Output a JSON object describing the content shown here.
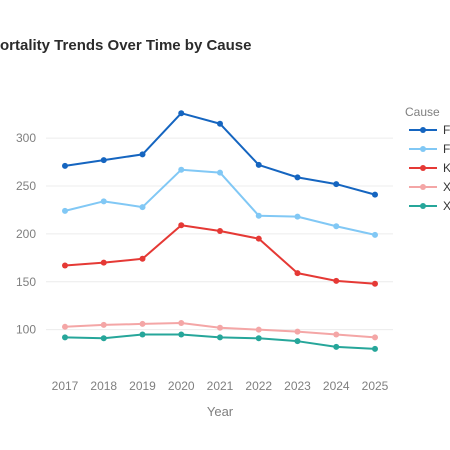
{
  "chart_data": {
    "type": "line",
    "title": "ortality Trends Over Time by Cause",
    "xlabel": "Year",
    "ylabel": "",
    "x": [
      2017,
      2018,
      2019,
      2020,
      2021,
      2022,
      2023,
      2024,
      2025
    ],
    "ylim": [
      60,
      345
    ],
    "yticks": [
      100,
      150,
      200,
      250,
      300
    ],
    "grid": true,
    "legend": {
      "title": "Cause",
      "placement": "right"
    },
    "series": [
      {
        "name": "F",
        "color": "#1565c0",
        "values": [
          271,
          277,
          283,
          326,
          315,
          272,
          259,
          252,
          241
        ]
      },
      {
        "name": "F",
        "color": "#81c8f5",
        "values": [
          224,
          234,
          228,
          267,
          264,
          219,
          218,
          208,
          199
        ]
      },
      {
        "name": "K",
        "color": "#e53935",
        "values": [
          167,
          170,
          174,
          209,
          203,
          195,
          159,
          151,
          148
        ]
      },
      {
        "name": "X",
        "color": "#f4a6a6",
        "values": [
          103,
          105,
          106,
          107,
          102,
          100,
          98,
          95,
          92
        ]
      },
      {
        "name": "X",
        "color": "#26a69a",
        "values": [
          92,
          91,
          95,
          95,
          92,
          91,
          88,
          82,
          80
        ]
      }
    ]
  }
}
